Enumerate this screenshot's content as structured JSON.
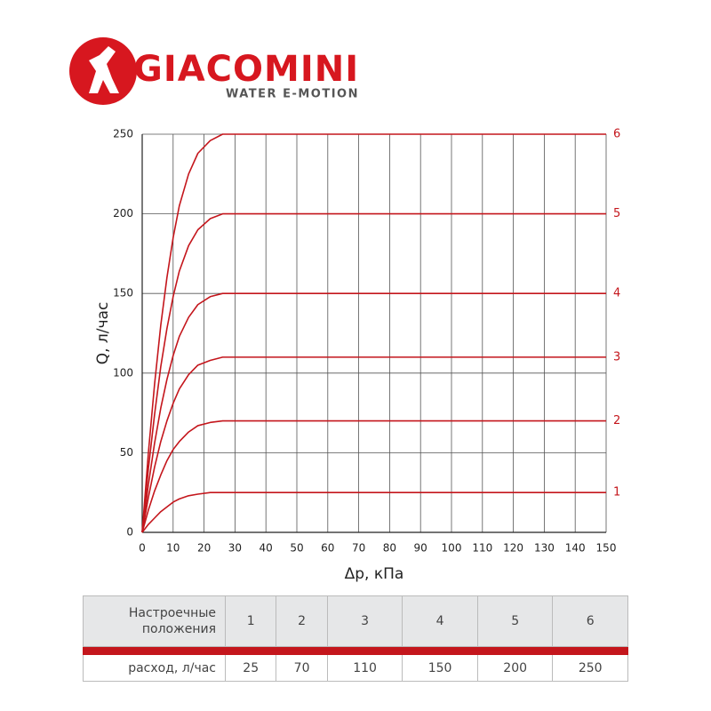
{
  "logo": {
    "name": "GIACOMINI",
    "tagline": "WATER E-MOTION"
  },
  "chart_data": {
    "type": "line",
    "x_label": "Δp, кПа",
    "y_label": "Q, л/час",
    "x": [
      0,
      2,
      4,
      6,
      8,
      10,
      12,
      15,
      18,
      22,
      26,
      30,
      150
    ],
    "series": [
      {
        "name": "1",
        "color": "#c4161c",
        "values": [
          0,
          5,
          9,
          13,
          16,
          19,
          21,
          23,
          24,
          25,
          25,
          25,
          25
        ]
      },
      {
        "name": "2",
        "color": "#c4161c",
        "values": [
          0,
          14,
          26,
          36,
          45,
          52,
          57,
          63,
          67,
          69,
          70,
          70,
          70
        ]
      },
      {
        "name": "3",
        "color": "#c4161c",
        "values": [
          0,
          22,
          41,
          57,
          70,
          81,
          90,
          99,
          105,
          108,
          110,
          110,
          110
        ]
      },
      {
        "name": "4",
        "color": "#c4161c",
        "values": [
          0,
          30,
          56,
          78,
          96,
          111,
          123,
          135,
          143,
          148,
          150,
          150,
          150
        ]
      },
      {
        "name": "5",
        "color": "#c4161c",
        "values": [
          0,
          40,
          74,
          104,
          128,
          148,
          164,
          180,
          190,
          197,
          200,
          200,
          200
        ]
      },
      {
        "name": "6",
        "color": "#c4161c",
        "values": [
          0,
          50,
          93,
          130,
          160,
          185,
          205,
          225,
          238,
          246,
          250,
          250,
          250
        ]
      }
    ],
    "xlim": [
      0,
      150
    ],
    "xticks": [
      0,
      10,
      20,
      30,
      40,
      50,
      60,
      70,
      80,
      90,
      100,
      110,
      120,
      130,
      140,
      150
    ],
    "ylim": [
      0,
      250
    ],
    "yticks": [
      0,
      50,
      100,
      150,
      200,
      250
    ],
    "grid": true
  },
  "table": {
    "rows": [
      [
        "Настроечные положения",
        "1",
        "2",
        "3",
        "4",
        "5",
        "6"
      ],
      [
        "расход, л/час",
        "25",
        "70",
        "110",
        "150",
        "200",
        "250"
      ]
    ]
  }
}
